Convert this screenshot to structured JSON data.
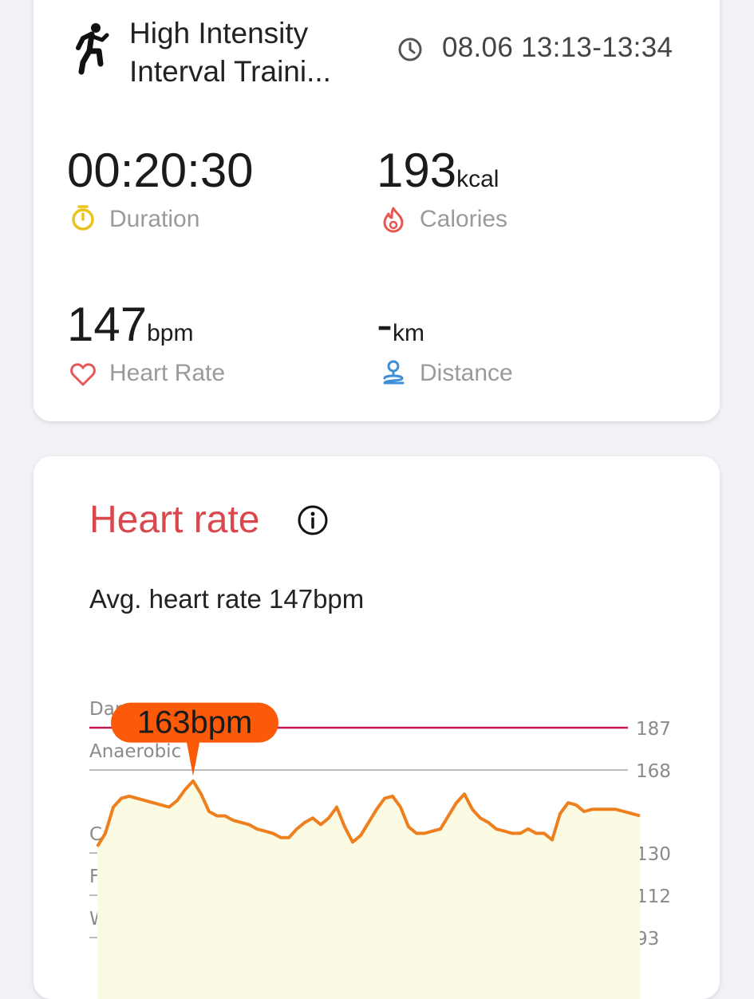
{
  "workout": {
    "title": "High Intensity Interval Traini...",
    "title_line1": "High Intensity",
    "title_line2": "Interval Traini...",
    "time_range": "08.06 13:13-13:34",
    "icon": "running-person-icon"
  },
  "stats": {
    "duration": {
      "value": "00:20:30",
      "unit": "",
      "label": "Duration",
      "icon": "stopwatch-icon",
      "color": "#e9c31c"
    },
    "calories": {
      "value": "193",
      "unit": "kcal",
      "label": "Calories",
      "icon": "flame-icon",
      "color": "#e8574f"
    },
    "heart_rate": {
      "value": "147",
      "unit": "bpm",
      "label": "Heart Rate",
      "icon": "heart-icon",
      "color": "#e35757"
    },
    "distance": {
      "value": "-",
      "unit": "km",
      "label": "Distance",
      "icon": "location-pin-icon",
      "color": "#3d8fd8"
    }
  },
  "heart_rate_card": {
    "title": "Heart rate",
    "avg_text": "Avg. heart rate 147bpm",
    "title_color": "#d9484d"
  },
  "chart_data": {
    "type": "area",
    "zones": [
      {
        "name": "Dangerous",
        "threshold": 187,
        "color": "#c2185b"
      },
      {
        "name": "Anaerobic",
        "threshold": 168,
        "color": "#bdbdbd"
      },
      {
        "name": "Cardio training",
        "threshold": 130,
        "color": "#bdbdbd"
      },
      {
        "name": "Fat burning",
        "threshold": 112,
        "color": "#bdbdbd"
      },
      {
        "name": "Warm up",
        "threshold": 93,
        "color": "#bdbdbd"
      }
    ],
    "y_ticks": [
      187,
      168,
      130,
      112,
      93
    ],
    "ylim": [
      93,
      187
    ],
    "peak": {
      "value": 163,
      "label": "163bpm",
      "color": "#fc5a09"
    },
    "line_color": "#ee7f1f",
    "fill_color": "#fbfbe4",
    "series": [
      {
        "values": [
          133,
          139,
          151,
          155,
          156,
          155,
          154,
          153,
          152,
          151,
          154,
          159,
          163,
          157,
          149,
          147,
          147,
          145,
          144,
          143,
          141,
          140,
          139,
          137,
          137,
          141,
          144,
          146,
          143,
          146,
          151,
          142,
          135,
          138,
          144,
          150,
          155,
          156,
          151,
          142,
          139,
          139,
          140,
          141,
          147,
          153,
          157,
          150,
          146,
          144,
          141,
          140,
          139,
          139,
          141,
          139,
          139,
          136,
          148,
          153,
          152,
          149,
          150,
          150,
          150,
          150,
          149,
          148,
          147
        ]
      }
    ]
  }
}
